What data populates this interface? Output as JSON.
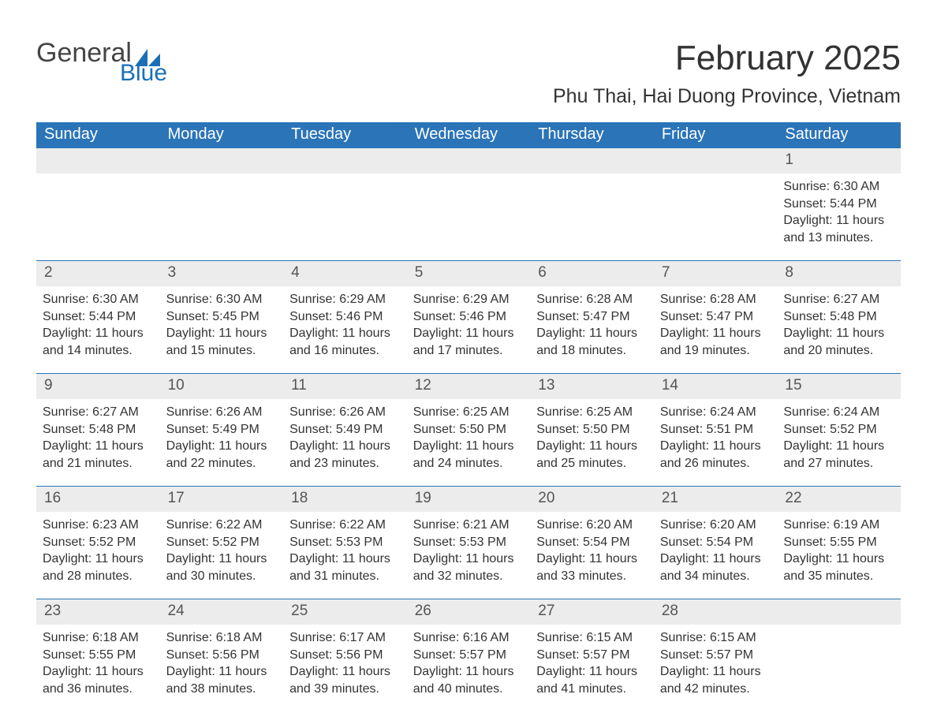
{
  "brand": {
    "word1": "General",
    "word2": "Blue",
    "accent_color": "#1b6fb5"
  },
  "title": "February 2025",
  "location": "Phu Thai, Hai Duong Province, Vietnam",
  "theme": {
    "header_bg": "#2b74b8",
    "header_fg": "#ffffff",
    "daynum_bg": "#ececec",
    "text_color": "#333333",
    "rule_color": "#2b74b8",
    "page_bg": "#ffffff"
  },
  "day_headers": [
    "Sunday",
    "Monday",
    "Tuesday",
    "Wednesday",
    "Thursday",
    "Friday",
    "Saturday"
  ],
  "weeks": [
    {
      "nums": [
        "",
        "",
        "",
        "",
        "",
        "",
        "1"
      ],
      "cells": [
        null,
        null,
        null,
        null,
        null,
        null,
        {
          "sunrise": "Sunrise: 6:30 AM",
          "sunset": "Sunset: 5:44 PM",
          "daylight": "Daylight: 11 hours and 13 minutes."
        }
      ]
    },
    {
      "nums": [
        "2",
        "3",
        "4",
        "5",
        "6",
        "7",
        "8"
      ],
      "cells": [
        {
          "sunrise": "Sunrise: 6:30 AM",
          "sunset": "Sunset: 5:44 PM",
          "daylight": "Daylight: 11 hours and 14 minutes."
        },
        {
          "sunrise": "Sunrise: 6:30 AM",
          "sunset": "Sunset: 5:45 PM",
          "daylight": "Daylight: 11 hours and 15 minutes."
        },
        {
          "sunrise": "Sunrise: 6:29 AM",
          "sunset": "Sunset: 5:46 PM",
          "daylight": "Daylight: 11 hours and 16 minutes."
        },
        {
          "sunrise": "Sunrise: 6:29 AM",
          "sunset": "Sunset: 5:46 PM",
          "daylight": "Daylight: 11 hours and 17 minutes."
        },
        {
          "sunrise": "Sunrise: 6:28 AM",
          "sunset": "Sunset: 5:47 PM",
          "daylight": "Daylight: 11 hours and 18 minutes."
        },
        {
          "sunrise": "Sunrise: 6:28 AM",
          "sunset": "Sunset: 5:47 PM",
          "daylight": "Daylight: 11 hours and 19 minutes."
        },
        {
          "sunrise": "Sunrise: 6:27 AM",
          "sunset": "Sunset: 5:48 PM",
          "daylight": "Daylight: 11 hours and 20 minutes."
        }
      ]
    },
    {
      "nums": [
        "9",
        "10",
        "11",
        "12",
        "13",
        "14",
        "15"
      ],
      "cells": [
        {
          "sunrise": "Sunrise: 6:27 AM",
          "sunset": "Sunset: 5:48 PM",
          "daylight": "Daylight: 11 hours and 21 minutes."
        },
        {
          "sunrise": "Sunrise: 6:26 AM",
          "sunset": "Sunset: 5:49 PM",
          "daylight": "Daylight: 11 hours and 22 minutes."
        },
        {
          "sunrise": "Sunrise: 6:26 AM",
          "sunset": "Sunset: 5:49 PM",
          "daylight": "Daylight: 11 hours and 23 minutes."
        },
        {
          "sunrise": "Sunrise: 6:25 AM",
          "sunset": "Sunset: 5:50 PM",
          "daylight": "Daylight: 11 hours and 24 minutes."
        },
        {
          "sunrise": "Sunrise: 6:25 AM",
          "sunset": "Sunset: 5:50 PM",
          "daylight": "Daylight: 11 hours and 25 minutes."
        },
        {
          "sunrise": "Sunrise: 6:24 AM",
          "sunset": "Sunset: 5:51 PM",
          "daylight": "Daylight: 11 hours and 26 minutes."
        },
        {
          "sunrise": "Sunrise: 6:24 AM",
          "sunset": "Sunset: 5:52 PM",
          "daylight": "Daylight: 11 hours and 27 minutes."
        }
      ]
    },
    {
      "nums": [
        "16",
        "17",
        "18",
        "19",
        "20",
        "21",
        "22"
      ],
      "cells": [
        {
          "sunrise": "Sunrise: 6:23 AM",
          "sunset": "Sunset: 5:52 PM",
          "daylight": "Daylight: 11 hours and 28 minutes."
        },
        {
          "sunrise": "Sunrise: 6:22 AM",
          "sunset": "Sunset: 5:52 PM",
          "daylight": "Daylight: 11 hours and 30 minutes."
        },
        {
          "sunrise": "Sunrise: 6:22 AM",
          "sunset": "Sunset: 5:53 PM",
          "daylight": "Daylight: 11 hours and 31 minutes."
        },
        {
          "sunrise": "Sunrise: 6:21 AM",
          "sunset": "Sunset: 5:53 PM",
          "daylight": "Daylight: 11 hours and 32 minutes."
        },
        {
          "sunrise": "Sunrise: 6:20 AM",
          "sunset": "Sunset: 5:54 PM",
          "daylight": "Daylight: 11 hours and 33 minutes."
        },
        {
          "sunrise": "Sunrise: 6:20 AM",
          "sunset": "Sunset: 5:54 PM",
          "daylight": "Daylight: 11 hours and 34 minutes."
        },
        {
          "sunrise": "Sunrise: 6:19 AM",
          "sunset": "Sunset: 5:55 PM",
          "daylight": "Daylight: 11 hours and 35 minutes."
        }
      ]
    },
    {
      "nums": [
        "23",
        "24",
        "25",
        "26",
        "27",
        "28",
        ""
      ],
      "cells": [
        {
          "sunrise": "Sunrise: 6:18 AM",
          "sunset": "Sunset: 5:55 PM",
          "daylight": "Daylight: 11 hours and 36 minutes."
        },
        {
          "sunrise": "Sunrise: 6:18 AM",
          "sunset": "Sunset: 5:56 PM",
          "daylight": "Daylight: 11 hours and 38 minutes."
        },
        {
          "sunrise": "Sunrise: 6:17 AM",
          "sunset": "Sunset: 5:56 PM",
          "daylight": "Daylight: 11 hours and 39 minutes."
        },
        {
          "sunrise": "Sunrise: 6:16 AM",
          "sunset": "Sunset: 5:57 PM",
          "daylight": "Daylight: 11 hours and 40 minutes."
        },
        {
          "sunrise": "Sunrise: 6:15 AM",
          "sunset": "Sunset: 5:57 PM",
          "daylight": "Daylight: 11 hours and 41 minutes."
        },
        {
          "sunrise": "Sunrise: 6:15 AM",
          "sunset": "Sunset: 5:57 PM",
          "daylight": "Daylight: 11 hours and 42 minutes."
        },
        null
      ]
    }
  ]
}
